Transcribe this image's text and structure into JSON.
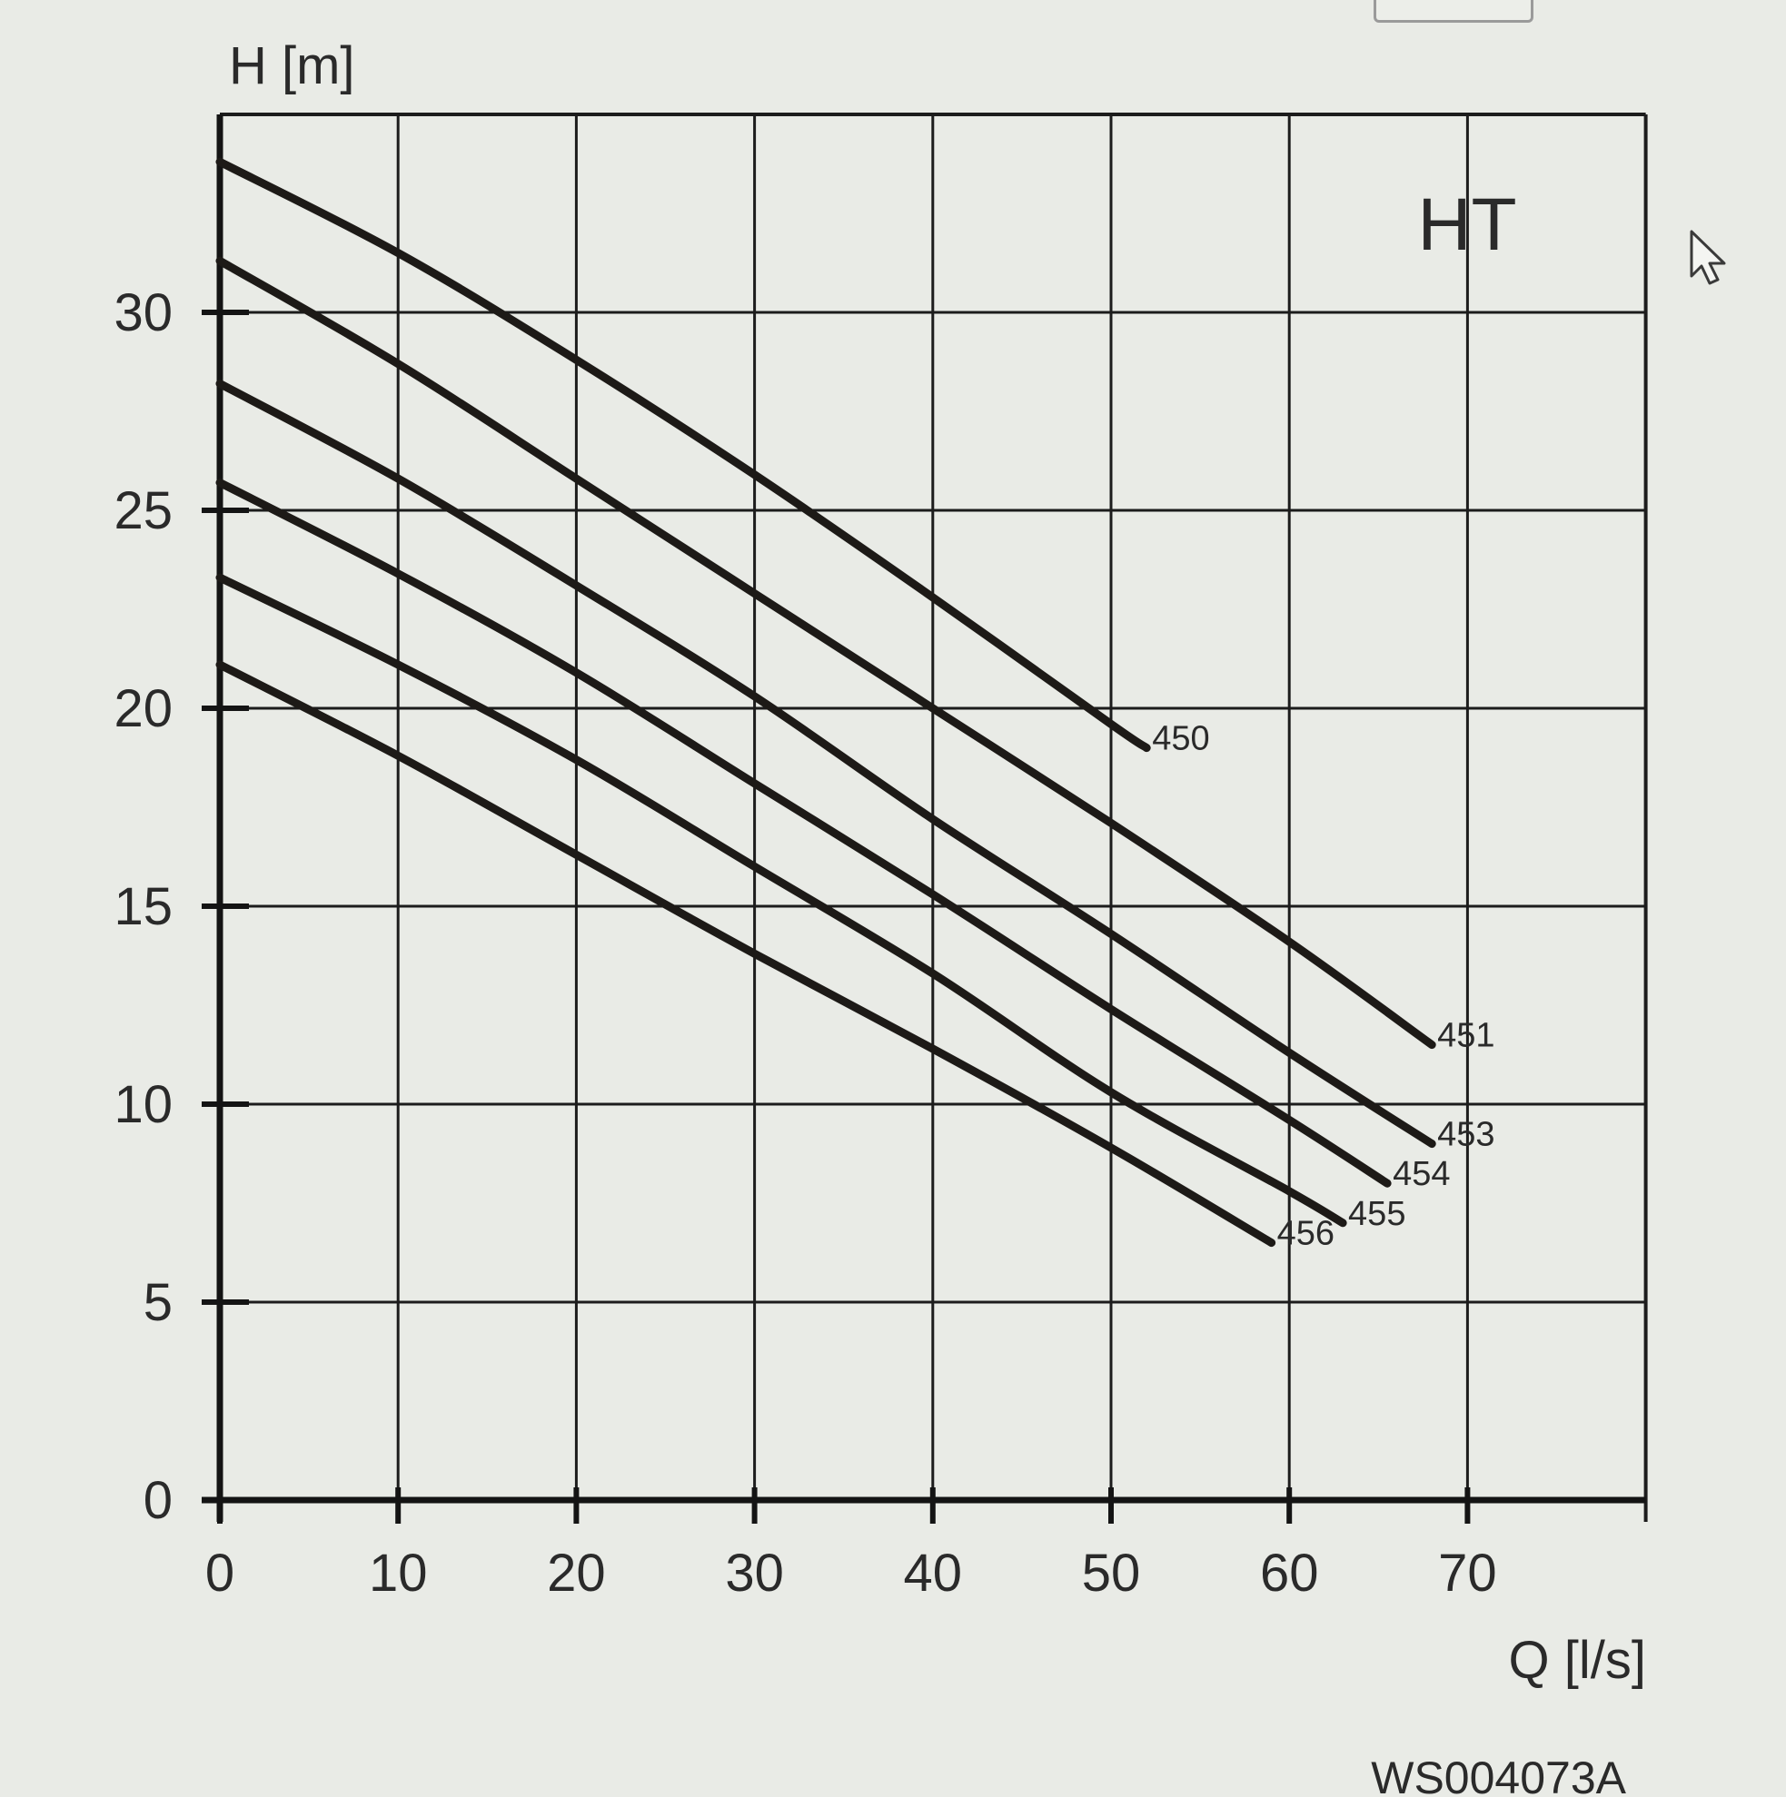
{
  "chart_data": {
    "type": "line",
    "title": "HT",
    "xlabel": "Q [l/s]",
    "ylabel": "H [m]",
    "code": "WS004073A",
    "xlim": [
      0,
      80
    ],
    "ylim": [
      0,
      35
    ],
    "xticks": [
      0,
      10,
      20,
      30,
      40,
      50,
      60,
      70
    ],
    "yticks": [
      0,
      5,
      10,
      15,
      20,
      25,
      30
    ],
    "grid": true,
    "series": [
      {
        "name": "450",
        "x": [
          0,
          10,
          20,
          30,
          40,
          50,
          52
        ],
        "y": [
          33.8,
          31.5,
          28.8,
          25.9,
          22.8,
          19.6,
          19.0
        ]
      },
      {
        "name": "451",
        "x": [
          0,
          10,
          20,
          30,
          40,
          50,
          60,
          68
        ],
        "y": [
          31.3,
          28.7,
          25.8,
          22.9,
          20.0,
          17.1,
          14.1,
          11.5
        ]
      },
      {
        "name": "453",
        "x": [
          0,
          10,
          20,
          30,
          40,
          50,
          60,
          68
        ],
        "y": [
          28.2,
          25.8,
          23.1,
          20.3,
          17.2,
          14.3,
          11.3,
          9.0
        ]
      },
      {
        "name": "454",
        "x": [
          0,
          10,
          20,
          30,
          40,
          50,
          60,
          65.5
        ],
        "y": [
          25.7,
          23.4,
          20.9,
          18.1,
          15.3,
          12.4,
          9.6,
          8.0
        ]
      },
      {
        "name": "455",
        "x": [
          0,
          10,
          20,
          30,
          40,
          50,
          60,
          63
        ],
        "y": [
          23.3,
          21.1,
          18.7,
          16.0,
          13.3,
          10.3,
          7.8,
          7.0
        ]
      },
      {
        "name": "456",
        "x": [
          0,
          10,
          20,
          30,
          40,
          50,
          59
        ],
        "y": [
          21.1,
          18.8,
          16.3,
          13.8,
          11.4,
          8.9,
          6.5
        ]
      }
    ]
  }
}
